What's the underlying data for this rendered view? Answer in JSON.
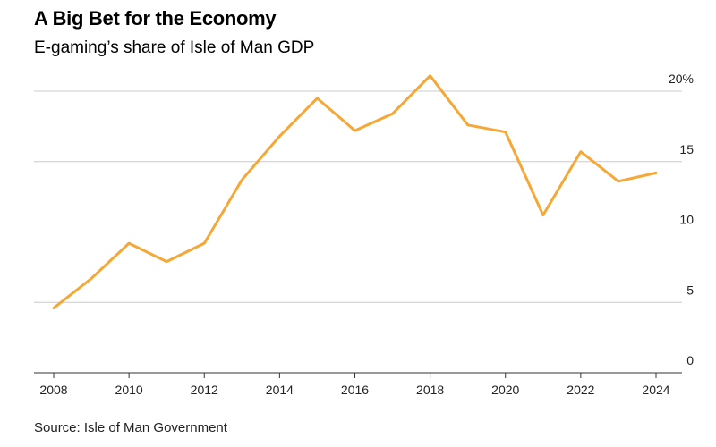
{
  "header": {
    "title": "A Big Bet for the Economy",
    "subtitle": "E-gaming’s share of Isle of Man GDP"
  },
  "footer": {
    "source": "Source: Isle of Man Government"
  },
  "colors": {
    "line": "#f5a835",
    "grid": "#cccccc",
    "axis": "#333333"
  },
  "chart_data": {
    "type": "line",
    "title": "A Big Bet for the Economy",
    "subtitle": "E-gaming’s share of Isle of Man GDP",
    "xlabel": "",
    "ylabel": "",
    "xlim": [
      2008,
      2024
    ],
    "ylim": [
      0,
      20
    ],
    "grid": true,
    "legend": "none",
    "x_ticks": [
      "2008",
      "2010",
      "2012",
      "2014",
      "2016",
      "2018",
      "2020",
      "2022",
      "2024"
    ],
    "y_ticks": [
      {
        "value": 0,
        "label": "0"
      },
      {
        "value": 5,
        "label": "5"
      },
      {
        "value": 10,
        "label": "10"
      },
      {
        "value": 15,
        "label": "15"
      },
      {
        "value": 20,
        "label": "20%"
      }
    ],
    "series": [
      {
        "x": [
          2008,
          2009,
          2010,
          2011,
          2012,
          2013,
          2014,
          2015,
          2016,
          2017,
          2018,
          2019,
          2020,
          2021,
          2022,
          2023,
          2024
        ],
        "values": [
          4.6,
          6.7,
          9.2,
          7.9,
          9.2,
          13.7,
          16.8,
          19.5,
          17.2,
          18.4,
          21.1,
          17.6,
          17.1,
          11.2,
          15.7,
          13.6,
          14.2
        ]
      }
    ],
    "source": "Source: Isle of Man Government"
  }
}
